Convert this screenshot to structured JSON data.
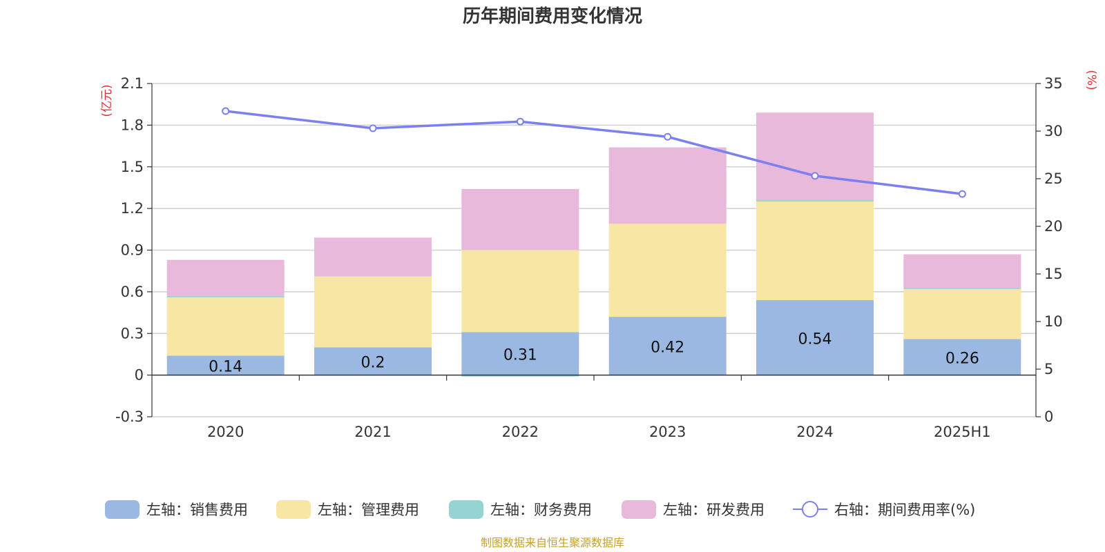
{
  "chart_data": {
    "type": "bar",
    "title": "历年期间费用变化情况",
    "categories": [
      "2020",
      "2021",
      "2022",
      "2023",
      "2024",
      "2025H1"
    ],
    "left_axis": {
      "unit": "(亿元)",
      "ylim": [
        -0.3,
        2.1
      ],
      "ticks": [
        "2.1",
        "1.8",
        "1.5",
        "1.2",
        "0.9",
        "0.6",
        "0.3",
        "0",
        "-0.3"
      ]
    },
    "right_axis": {
      "unit": "(%)",
      "ylim": [
        0,
        35
      ],
      "ticks": [
        "35",
        "30",
        "25",
        "20",
        "15",
        "10",
        "5",
        "0"
      ]
    },
    "series": [
      {
        "name": "左轴：销售费用",
        "type": "bar",
        "color": "#9bb8e3",
        "values": [
          0.14,
          0.2,
          0.31,
          0.42,
          0.54,
          0.26
        ],
        "labels": [
          "0.14",
          "0.2",
          "0.31",
          "0.42",
          "0.54",
          "0.26"
        ]
      },
      {
        "name": "左轴：管理费用",
        "type": "bar",
        "color": "#f8e6a5",
        "values": [
          0.42,
          0.51,
          0.59,
          0.67,
          0.71,
          0.36
        ]
      },
      {
        "name": "左轴：财务费用",
        "type": "bar",
        "color": "#96d4d4",
        "values": [
          0.01,
          0.0,
          -0.01,
          0.0,
          0.01,
          0.01
        ]
      },
      {
        "name": "左轴：研发费用",
        "type": "bar",
        "color": "#e8b9da",
        "values": [
          0.26,
          0.28,
          0.44,
          0.55,
          0.63,
          0.24
        ]
      },
      {
        "name": "右轴：期间费用率(%)",
        "type": "line",
        "color": "#7b7ff0",
        "values": [
          32.1,
          30.3,
          31.0,
          29.4,
          25.3,
          23.4
        ]
      }
    ],
    "grid": true,
    "legend_position": "bottom"
  },
  "source_text": "制图数据来自恒生聚源数据库"
}
